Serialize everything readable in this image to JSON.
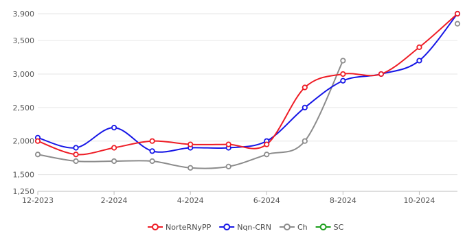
{
  "chart_data": {
    "type": "line",
    "title": "",
    "xlabel": "",
    "ylabel": "",
    "grid": "horizontal",
    "legend_position": "bottom-center",
    "x": [
      "2023-12",
      "2024-01",
      "2024-02",
      "2024-03",
      "2024-04",
      "2024-05",
      "2024-06",
      "2024-07",
      "2024-08",
      "2024-09",
      "2024-10",
      "2024-11"
    ],
    "x_tick_labels": [
      "12-2023",
      "2-2024",
      "4-2024",
      "6-2024",
      "8-2024",
      "10-2024"
    ],
    "y_ticks": [
      1250,
      1500,
      2000,
      2500,
      3000,
      3500,
      3900
    ],
    "y_tick_labels": [
      "1,250",
      "1,500",
      "2,000",
      "2,500",
      "3,000",
      "3,500",
      "3,900"
    ],
    "ylim": [
      1250,
      3900
    ],
    "series": [
      {
        "name": "NorteRNyPP",
        "color": "#ee1c25",
        "values": [
          2000,
          1800,
          1900,
          2000,
          1950,
          1950,
          1950,
          2800,
          3000,
          3000,
          3400,
          3900
        ]
      },
      {
        "name": "Nqn-CRN",
        "color": "#1616e6",
        "values": [
          2050,
          1900,
          2200,
          1850,
          1900,
          1900,
          2000,
          2500,
          2900,
          3000,
          3200,
          3900
        ]
      },
      {
        "name": "Ch",
        "color": "#8c8c8c",
        "values": [
          1800,
          1700,
          1700,
          1700,
          1600,
          1620,
          1800,
          2000,
          3200,
          null,
          null,
          3750
        ]
      },
      {
        "name": "SC",
        "color": "#1a9e1a",
        "values": [
          null,
          null,
          null,
          null,
          null,
          null,
          null,
          null,
          null,
          null,
          null,
          null
        ]
      }
    ]
  }
}
